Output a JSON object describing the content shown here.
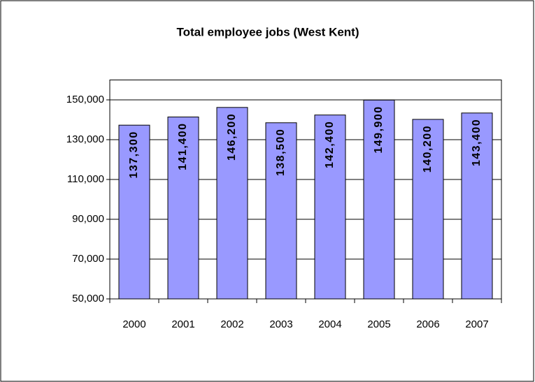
{
  "chart_data": {
    "type": "bar",
    "title": "Total employee jobs (West Kent)",
    "categories": [
      "2000",
      "2001",
      "2002",
      "2003",
      "2004",
      "2005",
      "2006",
      "2007"
    ],
    "values": [
      137300,
      141400,
      146200,
      138500,
      142400,
      149900,
      140200,
      143400
    ],
    "value_labels": [
      "137,300",
      "141,400",
      "146,200",
      "138,500",
      "142,400",
      "149,900",
      "140,200",
      "143,400"
    ],
    "color": "#9999ff",
    "ylim": [
      50000,
      160000
    ],
    "yticks": [
      {
        "value": 50000,
        "label": "50,000"
      },
      {
        "value": 70000,
        "label": "70,000"
      },
      {
        "value": 90000,
        "label": "90,000"
      },
      {
        "value": 110000,
        "label": "110,000"
      },
      {
        "value": 130000,
        "label": "130,000"
      },
      {
        "value": 150000,
        "label": "150,000"
      }
    ],
    "grid": true
  }
}
